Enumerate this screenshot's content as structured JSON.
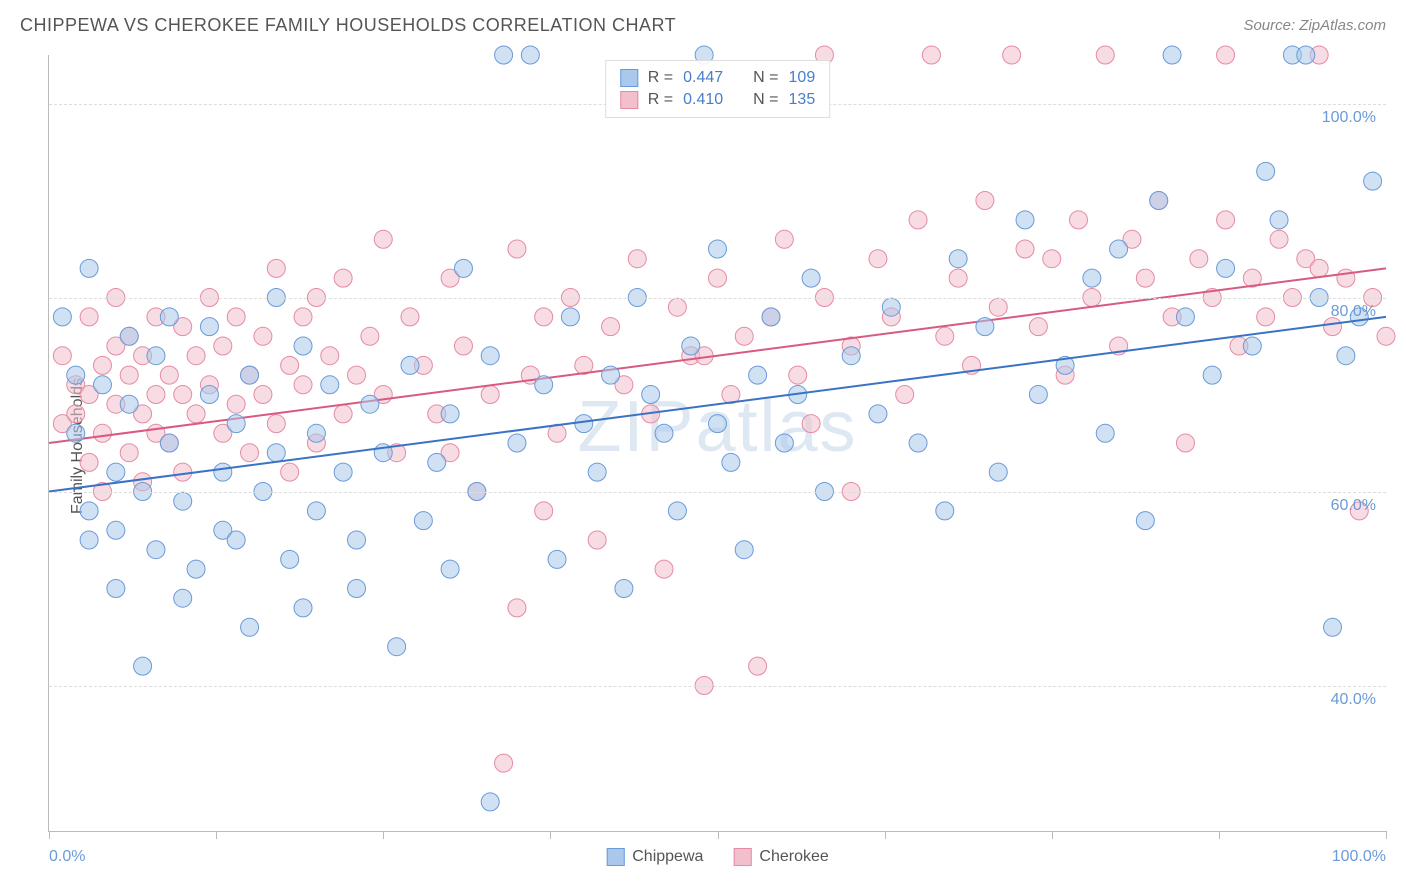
{
  "header": {
    "title": "CHIPPEWA VS CHEROKEE FAMILY HOUSEHOLDS CORRELATION CHART",
    "source": "Source: ZipAtlas.com"
  },
  "chart": {
    "type": "scatter",
    "ylabel": "Family Households",
    "watermark": "ZIPatlas",
    "xlim": [
      0,
      100
    ],
    "ylim": [
      25,
      105
    ],
    "x_tick_labels": {
      "left": "0.0%",
      "right": "100.0%"
    },
    "x_tick_positions": [
      0,
      12.5,
      25,
      37.5,
      50,
      62.5,
      75,
      87.5,
      100
    ],
    "y_ticks": [
      {
        "value": 40,
        "label": "40.0%"
      },
      {
        "value": 60,
        "label": "60.0%"
      },
      {
        "value": 80,
        "label": "80.0%"
      },
      {
        "value": 100,
        "label": "100.0%"
      }
    ],
    "background_color": "#ffffff",
    "grid_color": "#dddddd",
    "axis_color": "#bbbbbb",
    "marker_radius": 9,
    "marker_opacity": 0.55,
    "line_width": 2,
    "series": {
      "chippewa": {
        "label": "Chippewa",
        "color_fill": "#a9c8eb",
        "color_stroke": "#6a9bd8",
        "trend_color": "#3a72c4",
        "trend": {
          "x1": 0,
          "y1": 60,
          "x2": 100,
          "y2": 78
        },
        "points": [
          [
            1,
            78
          ],
          [
            2,
            66
          ],
          [
            2,
            72
          ],
          [
            3,
            58
          ],
          [
            3,
            55
          ],
          [
            3,
            83
          ],
          [
            4,
            71
          ],
          [
            5,
            62
          ],
          [
            5,
            56
          ],
          [
            5,
            50
          ],
          [
            6,
            76
          ],
          [
            6,
            69
          ],
          [
            7,
            42
          ],
          [
            7,
            60
          ],
          [
            8,
            54
          ],
          [
            8,
            74
          ],
          [
            9,
            65
          ],
          [
            9,
            78
          ],
          [
            10,
            59
          ],
          [
            10,
            49
          ],
          [
            11,
            52
          ],
          [
            12,
            70
          ],
          [
            12,
            77
          ],
          [
            13,
            62
          ],
          [
            13,
            56
          ],
          [
            14,
            55
          ],
          [
            14,
            67
          ],
          [
            15,
            72
          ],
          [
            15,
            46
          ],
          [
            16,
            60
          ],
          [
            17,
            64
          ],
          [
            17,
            80
          ],
          [
            18,
            53
          ],
          [
            19,
            75
          ],
          [
            19,
            48
          ],
          [
            20,
            66
          ],
          [
            20,
            58
          ],
          [
            21,
            71
          ],
          [
            22,
            62
          ],
          [
            23,
            55
          ],
          [
            23,
            50
          ],
          [
            24,
            69
          ],
          [
            25,
            64
          ],
          [
            26,
            44
          ],
          [
            27,
            73
          ],
          [
            28,
            57
          ],
          [
            29,
            63
          ],
          [
            30,
            52
          ],
          [
            30,
            68
          ],
          [
            31,
            83
          ],
          [
            32,
            60
          ],
          [
            33,
            74
          ],
          [
            33,
            28
          ],
          [
            34,
            105
          ],
          [
            35,
            65
          ],
          [
            36,
            105
          ],
          [
            37,
            71
          ],
          [
            38,
            53
          ],
          [
            39,
            78
          ],
          [
            40,
            67
          ],
          [
            41,
            62
          ],
          [
            42,
            72
          ],
          [
            43,
            50
          ],
          [
            44,
            80
          ],
          [
            45,
            70
          ],
          [
            46,
            66
          ],
          [
            47,
            58
          ],
          [
            48,
            75
          ],
          [
            49,
            105
          ],
          [
            50,
            67
          ],
          [
            50,
            85
          ],
          [
            51,
            63
          ],
          [
            52,
            54
          ],
          [
            53,
            72
          ],
          [
            54,
            78
          ],
          [
            55,
            65
          ],
          [
            56,
            70
          ],
          [
            57,
            82
          ],
          [
            58,
            60
          ],
          [
            60,
            74
          ],
          [
            62,
            68
          ],
          [
            63,
            79
          ],
          [
            65,
            65
          ],
          [
            67,
            58
          ],
          [
            68,
            84
          ],
          [
            70,
            77
          ],
          [
            71,
            62
          ],
          [
            73,
            88
          ],
          [
            74,
            70
          ],
          [
            76,
            73
          ],
          [
            78,
            82
          ],
          [
            79,
            66
          ],
          [
            80,
            85
          ],
          [
            82,
            57
          ],
          [
            83,
            90
          ],
          [
            84,
            105
          ],
          [
            85,
            78
          ],
          [
            87,
            72
          ],
          [
            88,
            83
          ],
          [
            90,
            75
          ],
          [
            91,
            93
          ],
          [
            92,
            88
          ],
          [
            93,
            105
          ],
          [
            94,
            105
          ],
          [
            95,
            80
          ],
          [
            96,
            46
          ],
          [
            97,
            74
          ],
          [
            98,
            78
          ],
          [
            99,
            92
          ]
        ]
      },
      "cherokee": {
        "label": "Cherokee",
        "color_fill": "#f2c0cc",
        "color_stroke": "#e58ba3",
        "trend_color": "#d85a80",
        "trend": {
          "x1": 0,
          "y1": 65,
          "x2": 100,
          "y2": 83
        },
        "points": [
          [
            1,
            67
          ],
          [
            1,
            74
          ],
          [
            2,
            68
          ],
          [
            2,
            71
          ],
          [
            3,
            70
          ],
          [
            3,
            63
          ],
          [
            3,
            78
          ],
          [
            4,
            73
          ],
          [
            4,
            66
          ],
          [
            4,
            60
          ],
          [
            5,
            75
          ],
          [
            5,
            69
          ],
          [
            5,
            80
          ],
          [
            6,
            64
          ],
          [
            6,
            72
          ],
          [
            6,
            76
          ],
          [
            7,
            68
          ],
          [
            7,
            61
          ],
          [
            7,
            74
          ],
          [
            8,
            70
          ],
          [
            8,
            66
          ],
          [
            8,
            78
          ],
          [
            9,
            72
          ],
          [
            9,
            65
          ],
          [
            10,
            77
          ],
          [
            10,
            70
          ],
          [
            10,
            62
          ],
          [
            11,
            74
          ],
          [
            11,
            68
          ],
          [
            12,
            80
          ],
          [
            12,
            71
          ],
          [
            13,
            66
          ],
          [
            13,
            75
          ],
          [
            14,
            69
          ],
          [
            14,
            78
          ],
          [
            15,
            72
          ],
          [
            15,
            64
          ],
          [
            16,
            76
          ],
          [
            16,
            70
          ],
          [
            17,
            83
          ],
          [
            17,
            67
          ],
          [
            18,
            73
          ],
          [
            18,
            62
          ],
          [
            19,
            78
          ],
          [
            19,
            71
          ],
          [
            20,
            65
          ],
          [
            20,
            80
          ],
          [
            21,
            74
          ],
          [
            22,
            68
          ],
          [
            22,
            82
          ],
          [
            23,
            72
          ],
          [
            24,
            76
          ],
          [
            25,
            70
          ],
          [
            25,
            86
          ],
          [
            26,
            64
          ],
          [
            27,
            78
          ],
          [
            28,
            73
          ],
          [
            29,
            68
          ],
          [
            30,
            82
          ],
          [
            31,
            75
          ],
          [
            32,
            60
          ],
          [
            33,
            70
          ],
          [
            34,
            32
          ],
          [
            35,
            48
          ],
          [
            35,
            85
          ],
          [
            36,
            72
          ],
          [
            37,
            78
          ],
          [
            38,
            66
          ],
          [
            39,
            80
          ],
          [
            40,
            73
          ],
          [
            41,
            55
          ],
          [
            42,
            77
          ],
          [
            43,
            71
          ],
          [
            44,
            84
          ],
          [
            45,
            68
          ],
          [
            46,
            52
          ],
          [
            47,
            79
          ],
          [
            48,
            74
          ],
          [
            49,
            40
          ],
          [
            50,
            82
          ],
          [
            51,
            70
          ],
          [
            52,
            76
          ],
          [
            53,
            42
          ],
          [
            54,
            78
          ],
          [
            55,
            86
          ],
          [
            56,
            72
          ],
          [
            57,
            67
          ],
          [
            58,
            80
          ],
          [
            58,
            105
          ],
          [
            60,
            75
          ],
          [
            62,
            84
          ],
          [
            63,
            78
          ],
          [
            64,
            70
          ],
          [
            65,
            88
          ],
          [
            66,
            105
          ],
          [
            67,
            76
          ],
          [
            68,
            82
          ],
          [
            69,
            73
          ],
          [
            70,
            90
          ],
          [
            71,
            79
          ],
          [
            72,
            105
          ],
          [
            73,
            85
          ],
          [
            74,
            77
          ],
          [
            75,
            84
          ],
          [
            76,
            72
          ],
          [
            77,
            88
          ],
          [
            78,
            80
          ],
          [
            79,
            105
          ],
          [
            80,
            75
          ],
          [
            81,
            86
          ],
          [
            82,
            82
          ],
          [
            83,
            90
          ],
          [
            84,
            78
          ],
          [
            85,
            65
          ],
          [
            86,
            84
          ],
          [
            87,
            80
          ],
          [
            88,
            88
          ],
          [
            89,
            75
          ],
          [
            90,
            82
          ],
          [
            91,
            78
          ],
          [
            92,
            86
          ],
          [
            93,
            80
          ],
          [
            94,
            84
          ],
          [
            95,
            105
          ],
          [
            96,
            77
          ],
          [
            97,
            82
          ],
          [
            98,
            58
          ],
          [
            99,
            80
          ],
          [
            100,
            76
          ],
          [
            88,
            105
          ],
          [
            95,
            83
          ],
          [
            60,
            60
          ],
          [
            37,
            58
          ],
          [
            49,
            74
          ],
          [
            30,
            64
          ]
        ]
      }
    },
    "stats": [
      {
        "swatch_fill": "#a9c8eb",
        "swatch_stroke": "#6a9bd8",
        "r_label": "R =",
        "r_value": "0.447",
        "n_label": "N =",
        "n_value": "109"
      },
      {
        "swatch_fill": "#f2c0cc",
        "swatch_stroke": "#e58ba3",
        "r_label": "R =",
        "r_value": "0.410",
        "n_label": "N =",
        "n_value": "135"
      }
    ]
  }
}
